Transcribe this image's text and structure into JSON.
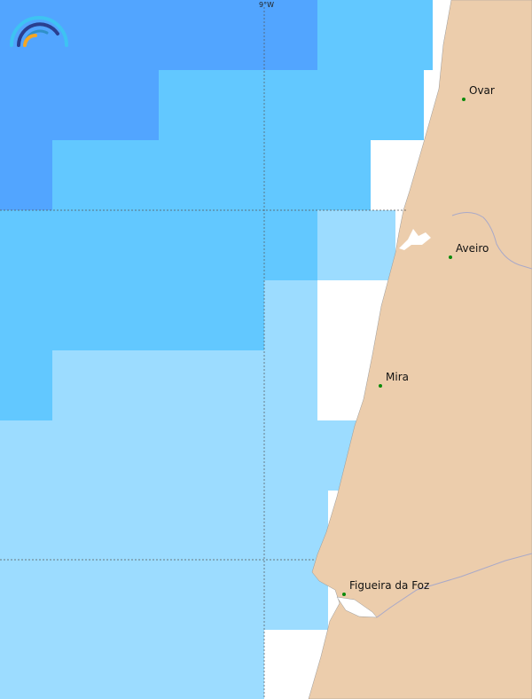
{
  "colors": {
    "dark": "#52a5ff",
    "mid": "#62c8ff",
    "light": "#9cdcff",
    "land": "#eccdac",
    "city": "#0a8a0a"
  },
  "graticule": {
    "lon_label": "9°W"
  },
  "cities": [
    {
      "name": "Ovar"
    },
    {
      "name": "Aveiro"
    },
    {
      "name": "Mira"
    },
    {
      "name": "Figueira da Foz"
    }
  ],
  "logo": {
    "icon": "rainbow-arc-logo"
  }
}
